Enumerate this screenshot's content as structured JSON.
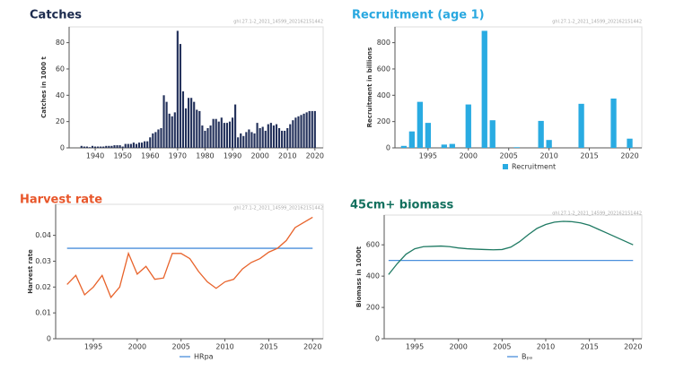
{
  "chart_data": [
    {
      "type": "bar",
      "title": "Catches",
      "title_color": "#1c2b4e",
      "subtitle": "ghl.27.1-2_2021_14599_202162151442",
      "y_label": "Catches in 1000 t",
      "x": [
        1935,
        1936,
        1937,
        1938,
        1939,
        1940,
        1941,
        1942,
        1943,
        1944,
        1945,
        1946,
        1947,
        1948,
        1949,
        1950,
        1951,
        1952,
        1953,
        1954,
        1955,
        1956,
        1957,
        1958,
        1959,
        1960,
        1961,
        1962,
        1963,
        1964,
        1965,
        1966,
        1967,
        1968,
        1969,
        1970,
        1971,
        1972,
        1973,
        1974,
        1975,
        1976,
        1977,
        1978,
        1979,
        1980,
        1981,
        1982,
        1983,
        1984,
        1985,
        1986,
        1987,
        1988,
        1989,
        1990,
        1991,
        1992,
        1993,
        1994,
        1995,
        1996,
        1997,
        1998,
        1999,
        2000,
        2001,
        2002,
        2003,
        2004,
        2005,
        2006,
        2007,
        2008,
        2009,
        2010,
        2011,
        2012,
        2013,
        2014,
        2015,
        2016,
        2017,
        2018,
        2019,
        2020
      ],
      "values": [
        1.5,
        1,
        1,
        0.5,
        1.5,
        1,
        1,
        1,
        1,
        1.5,
        1.5,
        1.5,
        2,
        2,
        2,
        1,
        3,
        3,
        3,
        4,
        3,
        4,
        4,
        5,
        5,
        8,
        11,
        12,
        14,
        15,
        40,
        35,
        26,
        24,
        27,
        89,
        79,
        43,
        30,
        38,
        38,
        35,
        29,
        28,
        17,
        13,
        15,
        17,
        22,
        22,
        20,
        23,
        19,
        19,
        20,
        23,
        33,
        8,
        11,
        9,
        12,
        14,
        12,
        11,
        19,
        15,
        16,
        13,
        18,
        19,
        17,
        18,
        15,
        13,
        13,
        15,
        18,
        21,
        23,
        24,
        25,
        26,
        27,
        28,
        28,
        28
      ],
      "color": "#22305a",
      "xlim": [
        1930.5,
        2023
      ],
      "ylim": [
        0,
        92
      ],
      "xticks": [
        1940,
        1950,
        1960,
        1970,
        1980,
        1990,
        2000,
        2010,
        2020
      ],
      "yticks": [
        0,
        20,
        40,
        60,
        80
      ]
    },
    {
      "type": "bar",
      "title": "Recruitment (age 1)",
      "title_color": "#29a8e0",
      "subtitle": "ghl.27.1-2_2021_14599_202162151442",
      "y_label": "Recruitment in billions",
      "x": [
        1992,
        1993,
        1994,
        1995,
        1996,
        1997,
        1998,
        1999,
        2000,
        2001,
        2002,
        2003,
        2004,
        2005,
        2006,
        2007,
        2008,
        2009,
        2010,
        2011,
        2012,
        2013,
        2014,
        2015,
        2016,
        2017,
        2018,
        2019,
        2020
      ],
      "series": [
        {
          "name": "Recruitment",
          "color": "#29abe2",
          "values": [
            15,
            125,
            350,
            190,
            0,
            25,
            30,
            0,
            330,
            0,
            890,
            210,
            0,
            0,
            5,
            0,
            0,
            205,
            60,
            0,
            0,
            0,
            335,
            0,
            0,
            0,
            375,
            0,
            70
          ]
        }
      ],
      "xlim": [
        1990.9,
        2021.5
      ],
      "ylim": [
        0,
        920
      ],
      "xticks": [
        1995,
        2000,
        2005,
        2010,
        2015,
        2020
      ],
      "yticks": [
        0,
        200,
        400,
        600,
        800
      ]
    },
    {
      "type": "line",
      "title": "Harvest rate",
      "title_color": "#e8562a",
      "subtitle": "ghl.27.1-2_2021_14599_202162151442",
      "y_label": "Harvest rate",
      "x": [
        1992,
        1993,
        1994,
        1995,
        1996,
        1997,
        1998,
        1999,
        2000,
        2001,
        2002,
        2003,
        2004,
        2005,
        2006,
        2007,
        2008,
        2009,
        2010,
        2011,
        2012,
        2013,
        2014,
        2015,
        2016,
        2017,
        2018,
        2019,
        2020
      ],
      "series": [
        {
          "color": "#e8632b",
          "values": [
            0.021,
            0.0245,
            0.017,
            0.02,
            0.0245,
            0.016,
            0.02,
            0.033,
            0.025,
            0.028,
            0.023,
            0.0235,
            0.033,
            0.033,
            0.031,
            0.026,
            0.022,
            0.0195,
            0.022,
            0.023,
            0.027,
            0.0295,
            0.031,
            0.0335,
            0.035,
            0.038,
            0.043,
            0.045,
            0.047
          ]
        }
      ],
      "hlines": [
        {
          "name": "HRpa",
          "color": "#4a8fdc",
          "value": 0.035
        }
      ],
      "xlim": [
        1990.7,
        2021.2
      ],
      "ylim": [
        0,
        0.052
      ],
      "xticks": [
        1995,
        2000,
        2005,
        2010,
        2015,
        2020
      ],
      "yticks": [
        0,
        0.01,
        0.02,
        0.03,
        0.04
      ]
    },
    {
      "type": "line",
      "title": "45cm+ biomass",
      "title_color": "#12705e",
      "subtitle": "ghl.27.1-2_2021_14599_202162151442",
      "y_label": "Biomass in 1000t",
      "x": [
        1992,
        1993,
        1994,
        1995,
        1996,
        1997,
        1998,
        1999,
        2000,
        2001,
        2002,
        2003,
        2004,
        2005,
        2006,
        2007,
        2008,
        2009,
        2010,
        2011,
        2012,
        2013,
        2014,
        2015,
        2016,
        2017,
        2018,
        2019,
        2020
      ],
      "series": [
        {
          "color": "#1f7a63",
          "values": [
            410,
            480,
            540,
            575,
            588,
            590,
            592,
            588,
            580,
            575,
            572,
            570,
            568,
            570,
            585,
            620,
            665,
            705,
            730,
            745,
            750,
            748,
            740,
            725,
            700,
            675,
            650,
            625,
            600
          ]
        }
      ],
      "hlines": [
        {
          "name": "Bₚₐ",
          "color": "#4a8fdc",
          "value": 500
        }
      ],
      "xlim": [
        1991.5,
        2021
      ],
      "ylim": [
        0,
        790
      ],
      "xticks": [
        1995,
        2000,
        2005,
        2010,
        2015,
        2020
      ],
      "yticks": [
        0,
        200,
        400,
        600
      ]
    }
  ]
}
